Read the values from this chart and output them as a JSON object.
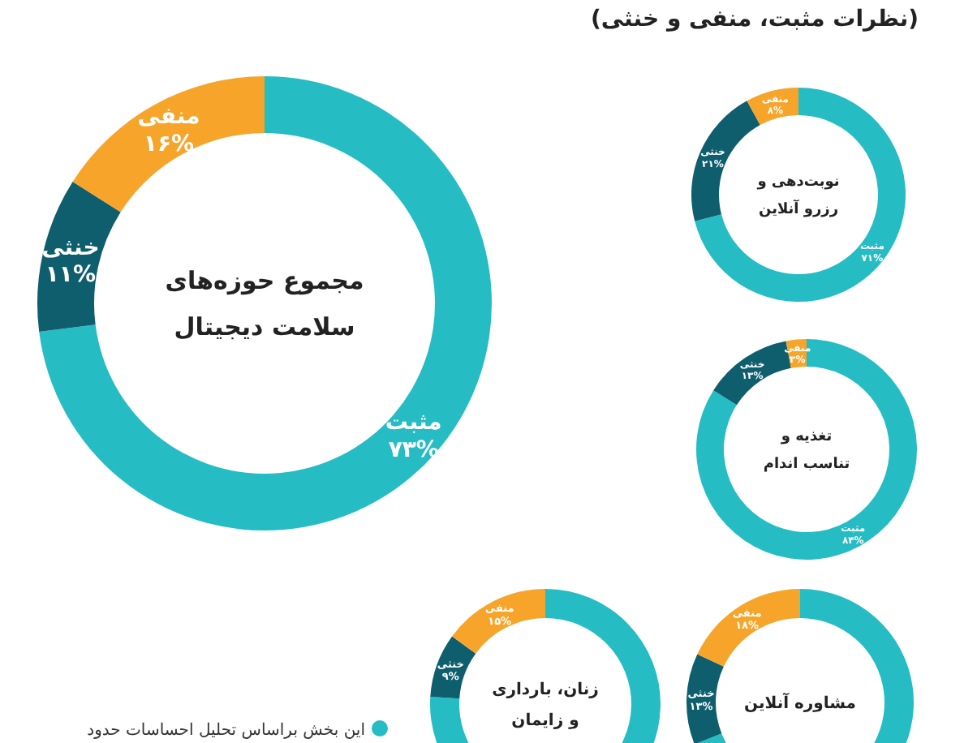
{
  "chart_data": [
    {
      "type": "donut",
      "title": "مجموع حوزه‌های سلامت دیجیتال",
      "categories": [
        "مثبت",
        "خنثی",
        "منفی"
      ],
      "values": [
        73,
        11,
        16
      ],
      "colors": [
        "#26bcc4",
        "#0e5e6e",
        "#f7a52a"
      ],
      "value_labels": [
        "۷۳%",
        "۱۱%",
        "۱۶%"
      ],
      "annotations": [
        "(نظرات مثبت، منفی و خنثی)",
        "این بخش براساس تحلیل احساسات حدود"
      ]
    },
    {
      "type": "donut",
      "title": "نوبت‌دهی و رزرو آنلاین",
      "categories": [
        "مثبت",
        "خنثی",
        "منفی"
      ],
      "values": [
        71,
        21,
        8
      ],
      "colors": [
        "#26bcc4",
        "#0e5e6e",
        "#f7a52a"
      ],
      "value_labels": [
        "۷۱%",
        "۲۱%",
        "۸%"
      ]
    },
    {
      "type": "donut",
      "title": "تغذیه و تناسب اندام",
      "categories": [
        "مثبت",
        "خنثی",
        "منفی"
      ],
      "values": [
        84,
        13,
        3
      ],
      "colors": [
        "#26bcc4",
        "#0e5e6e",
        "#f7a52a"
      ],
      "value_labels": [
        "۸۴%",
        "۱۳%",
        "۳%"
      ]
    },
    {
      "type": "donut",
      "title": "زنان، بارداری و زایمان",
      "categories": [
        null,
        "خنثی",
        "منفی"
      ],
      "values": [
        76,
        9,
        15
      ],
      "colors": [
        "#26bcc4",
        "#0e5e6e",
        "#f7a52a"
      ],
      "value_labels": [
        null,
        "۹%",
        "۱۵%"
      ]
    },
    {
      "type": "donut",
      "title": "مشاوره آنلاین",
      "categories": [
        null,
        "خنثی",
        "منفی"
      ],
      "values": [
        69,
        13,
        18
      ],
      "colors": [
        "#26bcc4",
        "#0e5e6e",
        "#f7a52a"
      ],
      "value_labels": [
        null,
        "۱۳%",
        "۱۸%"
      ]
    }
  ]
}
